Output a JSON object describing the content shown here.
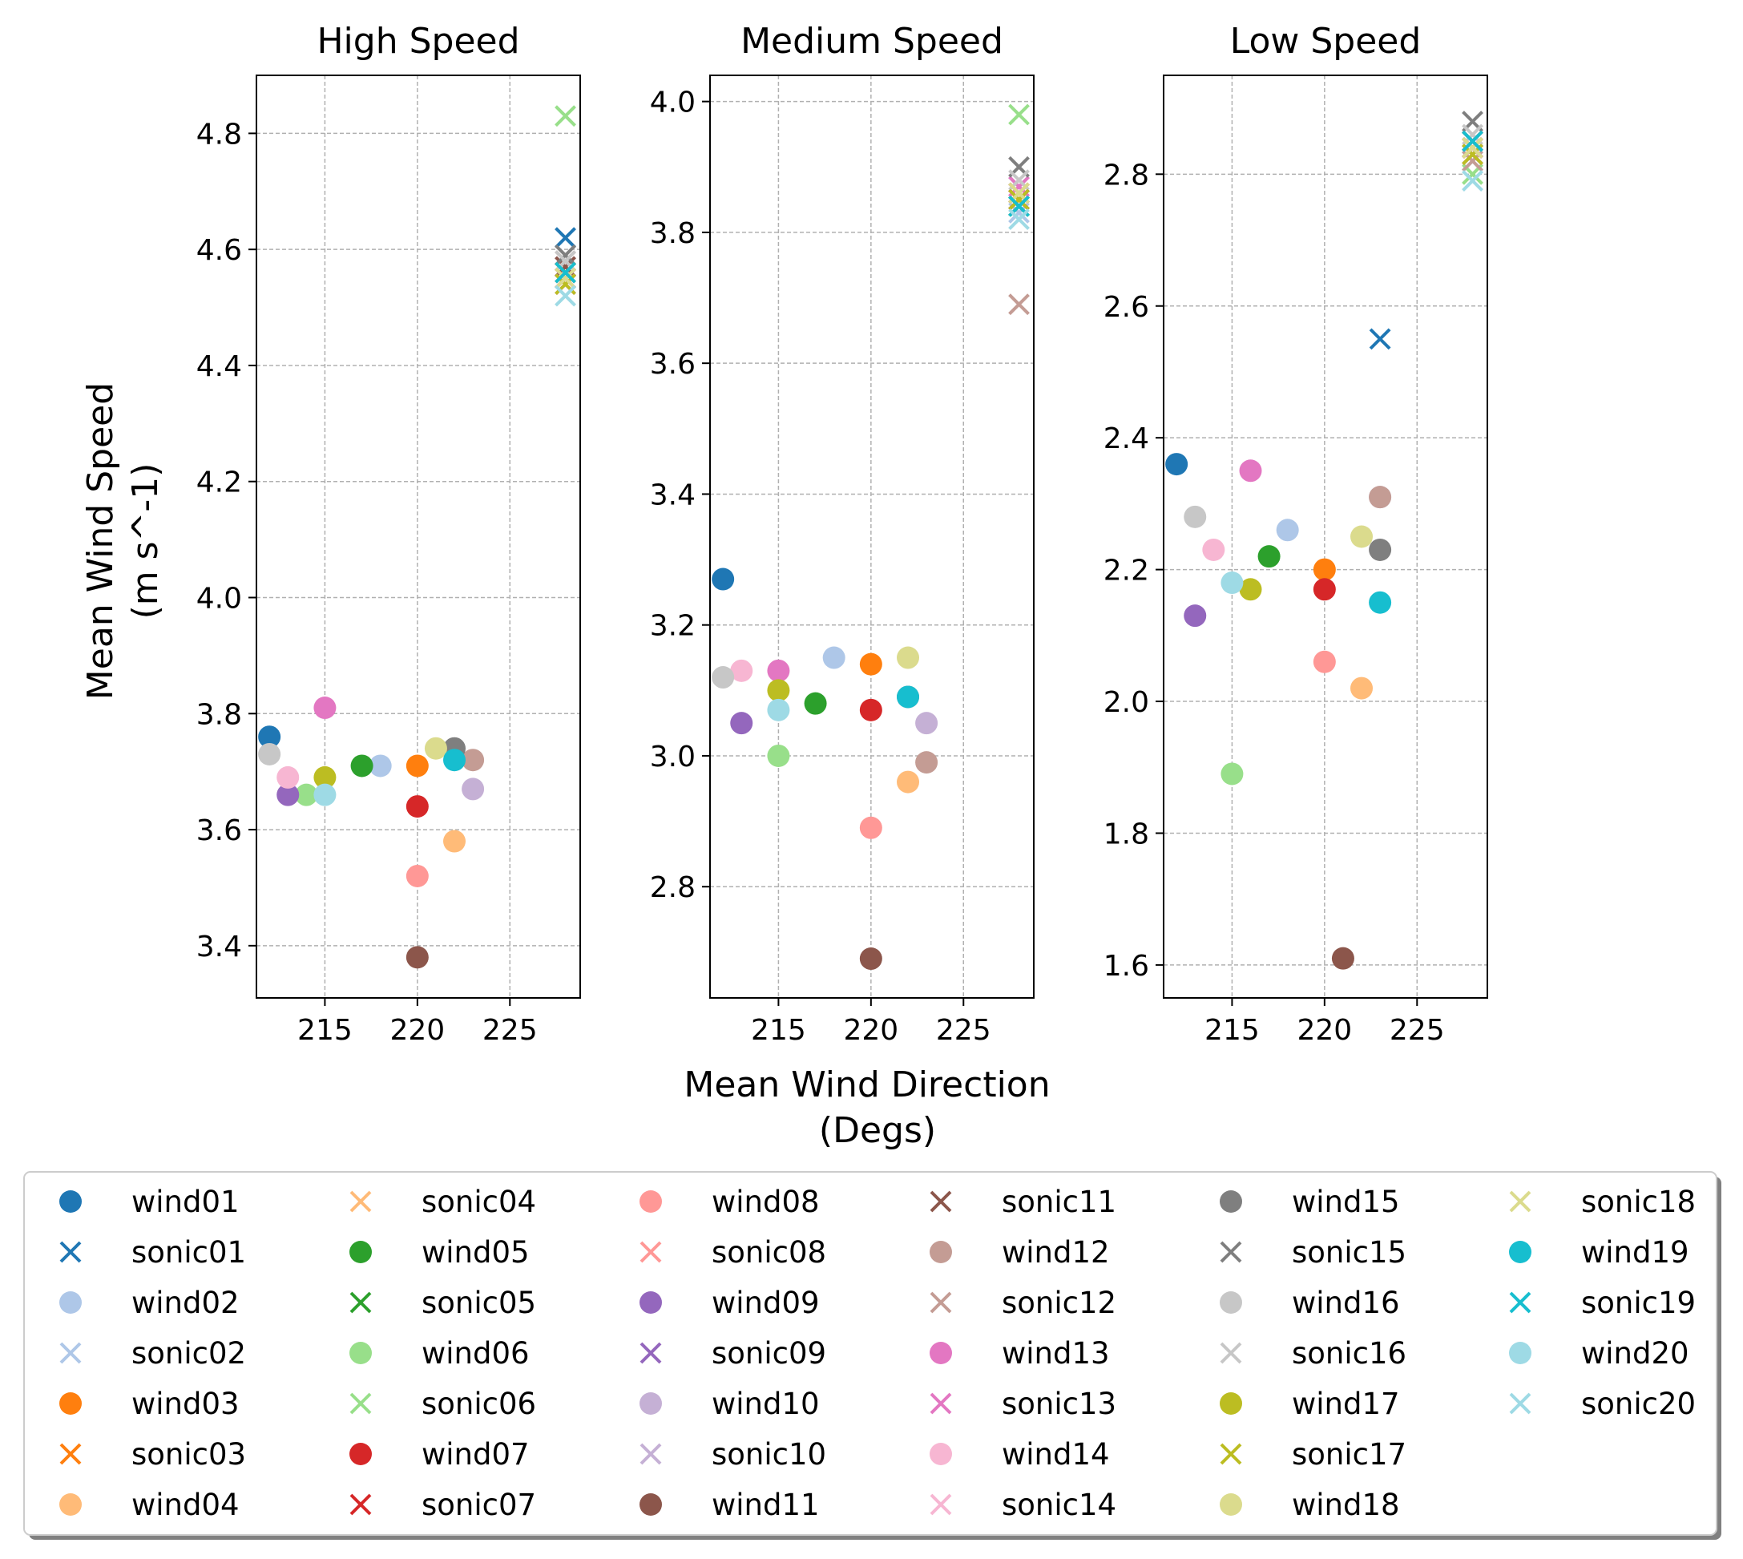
{
  "figure": {
    "xlabel_line1": "Mean Wind Direction",
    "xlabel_line2": "(Degs)",
    "ylabel_line1": "Mean Wind Speed",
    "ylabel_line2": "(m s^-1)"
  },
  "colors": {
    "01": "#1f77b4",
    "02": "#aec7e8",
    "03": "#ff7f0e",
    "04": "#ffbb78",
    "05": "#2ca02c",
    "06": "#98df8a",
    "07": "#d62728",
    "08": "#ff9896",
    "09": "#9467bd",
    "10": "#c5b0d5",
    "11": "#8c564b",
    "12": "#c49c94",
    "13": "#e377c2",
    "14": "#f7b6d2",
    "15": "#7f7f7f",
    "16": "#c7c7c7",
    "17": "#bcbd22",
    "18": "#dbdb8d",
    "19": "#17becf",
    "20": "#9edae5"
  },
  "legend": {
    "placement": "bottom-center, 6 columns",
    "entries": [
      {
        "label": "wind01",
        "marker": "circle",
        "color": "#1f77b4"
      },
      {
        "label": "sonic01",
        "marker": "x",
        "color": "#1f77b4"
      },
      {
        "label": "wind02",
        "marker": "circle",
        "color": "#aec7e8"
      },
      {
        "label": "sonic02",
        "marker": "x",
        "color": "#aec7e8"
      },
      {
        "label": "wind03",
        "marker": "circle",
        "color": "#ff7f0e"
      },
      {
        "label": "sonic03",
        "marker": "x",
        "color": "#ff7f0e"
      },
      {
        "label": "wind04",
        "marker": "circle",
        "color": "#ffbb78"
      },
      {
        "label": "sonic04",
        "marker": "x",
        "color": "#ffbb78"
      },
      {
        "label": "wind05",
        "marker": "circle",
        "color": "#2ca02c"
      },
      {
        "label": "sonic05",
        "marker": "x",
        "color": "#2ca02c"
      },
      {
        "label": "wind06",
        "marker": "circle",
        "color": "#98df8a"
      },
      {
        "label": "sonic06",
        "marker": "x",
        "color": "#98df8a"
      },
      {
        "label": "wind07",
        "marker": "circle",
        "color": "#d62728"
      },
      {
        "label": "sonic07",
        "marker": "x",
        "color": "#d62728"
      },
      {
        "label": "wind08",
        "marker": "circle",
        "color": "#ff9896"
      },
      {
        "label": "sonic08",
        "marker": "x",
        "color": "#ff9896"
      },
      {
        "label": "wind09",
        "marker": "circle",
        "color": "#9467bd"
      },
      {
        "label": "sonic09",
        "marker": "x",
        "color": "#9467bd"
      },
      {
        "label": "wind10",
        "marker": "circle",
        "color": "#c5b0d5"
      },
      {
        "label": "sonic10",
        "marker": "x",
        "color": "#c5b0d5"
      },
      {
        "label": "wind11",
        "marker": "circle",
        "color": "#8c564b"
      },
      {
        "label": "sonic11",
        "marker": "x",
        "color": "#8c564b"
      },
      {
        "label": "wind12",
        "marker": "circle",
        "color": "#c49c94"
      },
      {
        "label": "sonic12",
        "marker": "x",
        "color": "#c49c94"
      },
      {
        "label": "wind13",
        "marker": "circle",
        "color": "#e377c2"
      },
      {
        "label": "sonic13",
        "marker": "x",
        "color": "#e377c2"
      },
      {
        "label": "wind14",
        "marker": "circle",
        "color": "#f7b6d2"
      },
      {
        "label": "sonic14",
        "marker": "x",
        "color": "#f7b6d2"
      },
      {
        "label": "wind15",
        "marker": "circle",
        "color": "#7f7f7f"
      },
      {
        "label": "sonic15",
        "marker": "x",
        "color": "#7f7f7f"
      },
      {
        "label": "wind16",
        "marker": "circle",
        "color": "#c7c7c7"
      },
      {
        "label": "sonic16",
        "marker": "x",
        "color": "#c7c7c7"
      },
      {
        "label": "wind17",
        "marker": "circle",
        "color": "#bcbd22"
      },
      {
        "label": "sonic17",
        "marker": "x",
        "color": "#bcbd22"
      },
      {
        "label": "wind18",
        "marker": "circle",
        "color": "#dbdb8d"
      },
      {
        "label": "sonic18",
        "marker": "x",
        "color": "#dbdb8d"
      },
      {
        "label": "wind19",
        "marker": "circle",
        "color": "#17becf"
      },
      {
        "label": "sonic19",
        "marker": "x",
        "color": "#17becf"
      },
      {
        "label": "wind20",
        "marker": "circle",
        "color": "#9edae5"
      },
      {
        "label": "sonic20",
        "marker": "x",
        "color": "#9edae5"
      }
    ]
  },
  "chart_data": [
    {
      "type": "scatter",
      "title": "High Speed",
      "xlabel": "Mean Wind Direction (Degs)",
      "ylabel": "Mean Wind Speed (m s^-1)",
      "xlim": [
        211.3,
        228.8
      ],
      "ylim": [
        3.31,
        4.9
      ],
      "xticks": [
        215,
        220,
        225
      ],
      "yticks": [
        3.4,
        3.6,
        3.8,
        4.0,
        4.2,
        4.4,
        4.6,
        4.8
      ],
      "ytick_labels": [
        "3.4",
        "3.6",
        "3.8",
        "4.0",
        "4.2",
        "4.4",
        "4.6",
        "4.8"
      ],
      "grid": true,
      "wind": [
        {
          "id": "01",
          "x": 212.0,
          "y": 3.76
        },
        {
          "id": "02",
          "x": 218.0,
          "y": 3.71
        },
        {
          "id": "03",
          "x": 220.0,
          "y": 3.71
        },
        {
          "id": "04",
          "x": 222.0,
          "y": 3.58
        },
        {
          "id": "05",
          "x": 217.0,
          "y": 3.71
        },
        {
          "id": "06",
          "x": 214.0,
          "y": 3.66
        },
        {
          "id": "07",
          "x": 220.0,
          "y": 3.64
        },
        {
          "id": "08",
          "x": 220.0,
          "y": 3.52
        },
        {
          "id": "09",
          "x": 213.0,
          "y": 3.66
        },
        {
          "id": "10",
          "x": 223.0,
          "y": 3.67
        },
        {
          "id": "11",
          "x": 220.0,
          "y": 3.38
        },
        {
          "id": "12",
          "x": 223.0,
          "y": 3.72
        },
        {
          "id": "13",
          "x": 215.0,
          "y": 3.81
        },
        {
          "id": "14",
          "x": 213.0,
          "y": 3.69
        },
        {
          "id": "15",
          "x": 222.0,
          "y": 3.74
        },
        {
          "id": "16",
          "x": 212.0,
          "y": 3.73
        },
        {
          "id": "17",
          "x": 215.0,
          "y": 3.69
        },
        {
          "id": "18",
          "x": 221.0,
          "y": 3.74
        },
        {
          "id": "19",
          "x": 222.0,
          "y": 3.72
        },
        {
          "id": "20",
          "x": 215.0,
          "y": 3.66
        }
      ],
      "sonic": [
        {
          "id": "01",
          "x": 228.0,
          "y": 4.62
        },
        {
          "id": "02",
          "x": 228.0,
          "y": 4.54
        },
        {
          "id": "03",
          "x": 228.0,
          "y": 4.55
        },
        {
          "id": "04",
          "x": 228.0,
          "y": 4.56
        },
        {
          "id": "05",
          "x": 228.0,
          "y": 4.56
        },
        {
          "id": "06",
          "x": 228.0,
          "y": 4.83
        },
        {
          "id": "07",
          "x": 228.0,
          "y": 4.55
        },
        {
          "id": "08",
          "x": 228.0,
          "y": 4.56
        },
        {
          "id": "09",
          "x": 228.0,
          "y": 4.55
        },
        {
          "id": "10",
          "x": 228.0,
          "y": 4.57
        },
        {
          "id": "11",
          "x": 228.0,
          "y": 4.57
        },
        {
          "id": "12",
          "x": 228.0,
          "y": 4.58
        },
        {
          "id": "13",
          "x": 228.0,
          "y": 4.54
        },
        {
          "id": "14",
          "x": 228.0,
          "y": 4.55
        },
        {
          "id": "15",
          "x": 228.0,
          "y": 4.59
        },
        {
          "id": "16",
          "x": 228.0,
          "y": 4.58
        },
        {
          "id": "17",
          "x": 228.0,
          "y": 4.54
        },
        {
          "id": "18",
          "x": 228.0,
          "y": 4.55
        },
        {
          "id": "19",
          "x": 228.0,
          "y": 4.56
        },
        {
          "id": "20",
          "x": 228.0,
          "y": 4.52
        }
      ]
    },
    {
      "type": "scatter",
      "title": "Medium Speed",
      "xlabel": "Mean Wind Direction (Degs)",
      "ylabel": "Mean Wind Speed (m s^-1)",
      "xlim": [
        211.3,
        228.8
      ],
      "ylim": [
        2.63,
        4.04
      ],
      "xticks": [
        215,
        220,
        225
      ],
      "yticks": [
        2.8,
        3.0,
        3.2,
        3.4,
        3.6,
        3.8,
        4.0
      ],
      "ytick_labels": [
        "2.8",
        "3.0",
        "3.2",
        "3.4",
        "3.6",
        "3.8",
        "4.0"
      ],
      "grid": true,
      "wind": [
        {
          "id": "01",
          "x": 212.0,
          "y": 3.27
        },
        {
          "id": "02",
          "x": 218.0,
          "y": 3.15
        },
        {
          "id": "03",
          "x": 220.0,
          "y": 3.14
        },
        {
          "id": "04",
          "x": 222.0,
          "y": 2.96
        },
        {
          "id": "05",
          "x": 217.0,
          "y": 3.08
        },
        {
          "id": "06",
          "x": 215.0,
          "y": 3.0
        },
        {
          "id": "07",
          "x": 220.0,
          "y": 3.07
        },
        {
          "id": "08",
          "x": 220.0,
          "y": 2.89
        },
        {
          "id": "09",
          "x": 213.0,
          "y": 3.05
        },
        {
          "id": "10",
          "x": 223.0,
          "y": 3.05
        },
        {
          "id": "11",
          "x": 220.0,
          "y": 2.69
        },
        {
          "id": "12",
          "x": 223.0,
          "y": 2.99
        },
        {
          "id": "13",
          "x": 215.0,
          "y": 3.13
        },
        {
          "id": "14",
          "x": 213.0,
          "y": 3.13
        },
        {
          "id": "15",
          "x": 222.0,
          "y": 3.09
        },
        {
          "id": "16",
          "x": 212.0,
          "y": 3.12
        },
        {
          "id": "17",
          "x": 215.0,
          "y": 3.1
        },
        {
          "id": "18",
          "x": 222.0,
          "y": 3.15
        },
        {
          "id": "19",
          "x": 222.0,
          "y": 3.09
        },
        {
          "id": "20",
          "x": 215.0,
          "y": 3.07
        }
      ],
      "sonic": [
        {
          "id": "01",
          "x": 228.0,
          "y": 3.84
        },
        {
          "id": "02",
          "x": 228.0,
          "y": 3.83
        },
        {
          "id": "03",
          "x": 228.0,
          "y": 3.85
        },
        {
          "id": "04",
          "x": 228.0,
          "y": 3.86
        },
        {
          "id": "05",
          "x": 228.0,
          "y": 3.84
        },
        {
          "id": "06",
          "x": 228.0,
          "y": 3.98
        },
        {
          "id": "07",
          "x": 228.0,
          "y": 3.85
        },
        {
          "id": "08",
          "x": 228.0,
          "y": 3.86
        },
        {
          "id": "09",
          "x": 228.0,
          "y": 3.85
        },
        {
          "id": "10",
          "x": 228.0,
          "y": 3.87
        },
        {
          "id": "11",
          "x": 228.0,
          "y": 3.86
        },
        {
          "id": "12",
          "x": 228.0,
          "y": 3.69
        },
        {
          "id": "13",
          "x": 228.0,
          "y": 3.87
        },
        {
          "id": "14",
          "x": 228.0,
          "y": 3.86
        },
        {
          "id": "15",
          "x": 228.0,
          "y": 3.9
        },
        {
          "id": "16",
          "x": 228.0,
          "y": 3.88
        },
        {
          "id": "17",
          "x": 228.0,
          "y": 3.85
        },
        {
          "id": "18",
          "x": 228.0,
          "y": 3.86
        },
        {
          "id": "19",
          "x": 228.0,
          "y": 3.84
        },
        {
          "id": "20",
          "x": 228.0,
          "y": 3.82
        }
      ]
    },
    {
      "type": "scatter",
      "title": "Low Speed",
      "xlabel": "Mean Wind Direction (Degs)",
      "ylabel": "Mean Wind Speed (m s^-1)",
      "xlim": [
        211.3,
        228.8
      ],
      "ylim": [
        1.55,
        2.95
      ],
      "xticks": [
        215,
        220,
        225
      ],
      "yticks": [
        1.6,
        1.8,
        2.0,
        2.2,
        2.4,
        2.6,
        2.8
      ],
      "ytick_labels": [
        "1.6",
        "1.8",
        "2.0",
        "2.2",
        "2.4",
        "2.6",
        "2.8"
      ],
      "grid": true,
      "wind": [
        {
          "id": "01",
          "x": 212.0,
          "y": 2.36
        },
        {
          "id": "02",
          "x": 218.0,
          "y": 2.26
        },
        {
          "id": "03",
          "x": 220.0,
          "y": 2.2
        },
        {
          "id": "04",
          "x": 222.0,
          "y": 2.02
        },
        {
          "id": "05",
          "x": 217.0,
          "y": 2.22
        },
        {
          "id": "06",
          "x": 215.0,
          "y": 1.89
        },
        {
          "id": "07",
          "x": 220.0,
          "y": 2.17
        },
        {
          "id": "08",
          "x": 220.0,
          "y": 2.06
        },
        {
          "id": "09",
          "x": 213.0,
          "y": 2.13
        },
        {
          "id": "10",
          "x": 223.0,
          "y": 2.31
        },
        {
          "id": "11",
          "x": 221.0,
          "y": 1.61
        },
        {
          "id": "12",
          "x": 223.0,
          "y": 2.31
        },
        {
          "id": "13",
          "x": 216.0,
          "y": 2.35
        },
        {
          "id": "14",
          "x": 214.0,
          "y": 2.23
        },
        {
          "id": "15",
          "x": 223.0,
          "y": 2.23
        },
        {
          "id": "16",
          "x": 213.0,
          "y": 2.28
        },
        {
          "id": "17",
          "x": 216.0,
          "y": 2.17
        },
        {
          "id": "18",
          "x": 222.0,
          "y": 2.25
        },
        {
          "id": "19",
          "x": 223.0,
          "y": 2.15
        },
        {
          "id": "20",
          "x": 215.0,
          "y": 2.18
        }
      ],
      "sonic": [
        {
          "id": "01",
          "x": 223.0,
          "y": 2.55
        },
        {
          "id": "02",
          "x": 228.0,
          "y": 2.82
        },
        {
          "id": "03",
          "x": 228.0,
          "y": 2.84
        },
        {
          "id": "04",
          "x": 228.0,
          "y": 2.85
        },
        {
          "id": "05",
          "x": 228.0,
          "y": 2.83
        },
        {
          "id": "06",
          "x": 228.0,
          "y": 2.8
        },
        {
          "id": "07",
          "x": 228.0,
          "y": 2.84
        },
        {
          "id": "08",
          "x": 228.0,
          "y": 2.83
        },
        {
          "id": "09",
          "x": 228.0,
          "y": 2.84
        },
        {
          "id": "10",
          "x": 228.0,
          "y": 2.85
        },
        {
          "id": "11",
          "x": 228.0,
          "y": 2.85
        },
        {
          "id": "12",
          "x": 228.0,
          "y": 2.82
        },
        {
          "id": "13",
          "x": 228.0,
          "y": 2.83
        },
        {
          "id": "14",
          "x": 228.0,
          "y": 2.84
        },
        {
          "id": "15",
          "x": 228.0,
          "y": 2.88
        },
        {
          "id": "16",
          "x": 228.0,
          "y": 2.86
        },
        {
          "id": "17",
          "x": 228.0,
          "y": 2.83
        },
        {
          "id": "18",
          "x": 228.0,
          "y": 2.84
        },
        {
          "id": "19",
          "x": 228.0,
          "y": 2.85
        },
        {
          "id": "20",
          "x": 228.0,
          "y": 2.79
        }
      ]
    }
  ]
}
